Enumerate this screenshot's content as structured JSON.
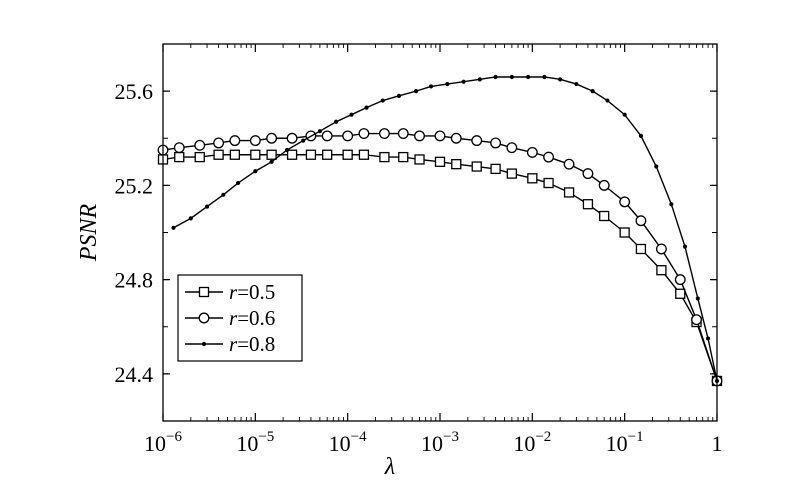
{
  "chart_data": {
    "type": "line",
    "xlabel": "λ",
    "ylabel": "PSNR",
    "xscale": "log",
    "xlim": [
      1e-06,
      1
    ],
    "ylim": [
      24.2,
      25.8
    ],
    "grid": false,
    "legend_position": "bottom-left",
    "x_tick_labels": [
      {
        "base": "10",
        "exp": "−6"
      },
      {
        "base": "10",
        "exp": "−5"
      },
      {
        "base": "10",
        "exp": "−4"
      },
      {
        "base": "10",
        "exp": "−3"
      },
      {
        "base": "10",
        "exp": "−2"
      },
      {
        "base": "10",
        "exp": "−1"
      },
      {
        "base": "1",
        "exp": ""
      }
    ],
    "y_ticks": [
      "24.4",
      "24.8",
      "25.2",
      "25.6"
    ],
    "series": [
      {
        "name": "r=0.5",
        "legend_var": "r",
        "legend_value": "=0.5",
        "marker": "square",
        "x": [
          1e-06,
          1.5e-06,
          2.5e-06,
          4e-06,
          6e-06,
          1e-05,
          1.5e-05,
          2.5e-05,
          4e-05,
          6e-05,
          0.0001,
          0.00015,
          0.00025,
          0.0004,
          0.0006,
          0.001,
          0.0015,
          0.0025,
          0.004,
          0.006,
          0.01,
          0.015,
          0.025,
          0.04,
          0.06,
          0.1,
          0.15,
          0.25,
          0.4,
          0.6,
          1
        ],
        "y": [
          25.31,
          25.32,
          25.32,
          25.33,
          25.33,
          25.33,
          25.33,
          25.33,
          25.33,
          25.33,
          25.33,
          25.33,
          25.32,
          25.32,
          25.31,
          25.3,
          25.29,
          25.28,
          25.27,
          25.25,
          25.23,
          25.21,
          25.17,
          25.12,
          25.07,
          25.0,
          24.93,
          24.84,
          24.74,
          24.62,
          24.37
        ]
      },
      {
        "name": "r=0.6",
        "legend_var": "r",
        "legend_value": "=0.6",
        "marker": "circle",
        "x": [
          1e-06,
          1.5e-06,
          2.5e-06,
          4e-06,
          6e-06,
          1e-05,
          1.5e-05,
          2.5e-05,
          4e-05,
          6e-05,
          0.0001,
          0.00015,
          0.00025,
          0.0004,
          0.0006,
          0.001,
          0.0015,
          0.0025,
          0.004,
          0.006,
          0.01,
          0.015,
          0.025,
          0.04,
          0.06,
          0.1,
          0.15,
          0.25,
          0.4,
          0.6,
          1
        ],
        "y": [
          25.35,
          25.36,
          25.37,
          25.38,
          25.39,
          25.39,
          25.4,
          25.4,
          25.41,
          25.41,
          25.41,
          25.42,
          25.42,
          25.42,
          25.41,
          25.41,
          25.4,
          25.39,
          25.38,
          25.36,
          25.34,
          25.32,
          25.29,
          25.25,
          25.2,
          25.13,
          25.05,
          24.93,
          24.8,
          24.63,
          24.37
        ]
      },
      {
        "name": "r=0.8",
        "legend_var": "r",
        "legend_value": "=0.8",
        "marker": "dot",
        "x": [
          1.3e-06,
          2e-06,
          3e-06,
          4.5e-06,
          6.5e-06,
          1e-05,
          1.5e-05,
          2.2e-05,
          3.3e-05,
          5e-05,
          7.5e-05,
          0.00011,
          0.00016,
          0.00024,
          0.00036,
          0.00055,
          0.0008,
          0.0012,
          0.0018,
          0.0027,
          0.004,
          0.006,
          0.009,
          0.0135,
          0.02,
          0.03,
          0.045,
          0.065,
          0.1,
          0.15,
          0.22,
          0.32,
          0.45,
          0.62,
          0.8,
          1
        ],
        "y": [
          25.02,
          25.06,
          25.11,
          25.16,
          25.21,
          25.26,
          25.3,
          25.35,
          25.39,
          25.43,
          25.47,
          25.5,
          25.53,
          25.56,
          25.58,
          25.6,
          25.62,
          25.63,
          25.64,
          25.65,
          25.66,
          25.66,
          25.66,
          25.66,
          25.65,
          25.63,
          25.6,
          25.56,
          25.5,
          25.41,
          25.28,
          25.12,
          24.94,
          24.72,
          24.55,
          24.37
        ]
      }
    ]
  }
}
